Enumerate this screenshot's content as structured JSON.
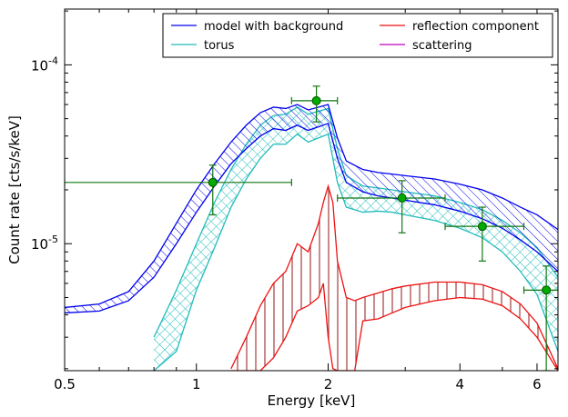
{
  "chart_data": {
    "type": "line",
    "title": "",
    "xlabel": "Energy [keV]",
    "ylabel": "Count rate [cts/s/keV]",
    "xscale": "log",
    "yscale": "log",
    "xlim": [
      0.5,
      6.7
    ],
    "ylim": [
      1.95e-06,
      0.000205
    ],
    "x_ticks": [
      {
        "value": 0.5,
        "label": "0.5"
      },
      {
        "value": 1,
        "label": "1"
      },
      {
        "value": 2,
        "label": "2"
      },
      {
        "value": 4,
        "label": "4"
      },
      {
        "value": 6,
        "label": "6"
      }
    ],
    "y_ticks": [
      {
        "value": 1e-05,
        "base": "10",
        "exp": "-5"
      },
      {
        "value": 0.0001,
        "base": "10",
        "exp": "-4"
      }
    ],
    "legend": {
      "placement": "top-right",
      "columns": 2,
      "entries": [
        {
          "label": "model with background",
          "color": "#0000ee"
        },
        {
          "label": "reflection component",
          "color": "#ee1111"
        },
        {
          "label": "torus",
          "color": "#22bbbb"
        },
        {
          "label": "scattering",
          "color": "#bb00bb"
        }
      ]
    },
    "colors": {
      "model": "#0000ee",
      "torus": "#22bbbb",
      "reflection": "#ee1111",
      "reflection_fill": "#a83a3a",
      "data": "#117711",
      "data_marker": "#00aa00"
    },
    "series": [
      {
        "name": "model with background",
        "band": true,
        "x": [
          0.5,
          0.6,
          0.7,
          0.8,
          0.9,
          1.0,
          1.1,
          1.2,
          1.3,
          1.4,
          1.5,
          1.6,
          1.7,
          1.8,
          1.9,
          2.0,
          2.1,
          2.2,
          2.4,
          2.6,
          2.8,
          3.0,
          3.5,
          4.0,
          4.5,
          5.0,
          5.5,
          6.0,
          6.7
        ],
        "upper": [
          4.4e-06,
          4.6e-06,
          5.4e-06,
          8e-06,
          1.3e-05,
          2e-05,
          2.8e-05,
          3.7e-05,
          4.6e-05,
          5.4e-05,
          5.8e-05,
          5.7e-05,
          6e-05,
          5.6e-05,
          5.8e-05,
          6e-05,
          3.9e-05,
          2.9e-05,
          2.6e-05,
          2.5e-05,
          2.45e-05,
          2.4e-05,
          2.3e-05,
          2.15e-05,
          2e-05,
          1.8e-05,
          1.6e-05,
          1.45e-05,
          1.2e-05
        ],
        "lower": [
          4.1e-06,
          4.2e-06,
          4.8e-06,
          6.5e-06,
          1e-05,
          1.5e-05,
          2.1e-05,
          2.8e-05,
          3.4e-05,
          4e-05,
          4.4e-05,
          4.3e-05,
          4.6e-05,
          4.3e-05,
          4.5e-05,
          4.7e-05,
          3e-05,
          2.2e-05,
          1.95e-05,
          1.85e-05,
          1.8e-05,
          1.75e-05,
          1.65e-05,
          1.52e-05,
          1.38e-05,
          1.22e-05,
          1.05e-05,
          9e-06,
          7e-06
        ]
      },
      {
        "name": "torus",
        "band": true,
        "x": [
          0.8,
          0.9,
          1.0,
          1.1,
          1.2,
          1.3,
          1.4,
          1.5,
          1.6,
          1.7,
          1.8,
          1.9,
          2.0,
          2.1,
          2.2,
          2.4,
          2.6,
          2.8,
          3.0,
          3.5,
          4.0,
          4.5,
          5.0,
          5.5,
          6.0,
          6.7
        ],
        "upper": [
          3e-06,
          5.5e-06,
          1e-05,
          1.7e-05,
          2.6e-05,
          3.6e-05,
          4.6e-05,
          5.2e-05,
          5.3e-05,
          5.8e-05,
          5.3e-05,
          5.5e-05,
          5.7e-05,
          3.4e-05,
          2.4e-05,
          2.1e-05,
          2.05e-05,
          2e-05,
          1.95e-05,
          1.85e-05,
          1.7e-05,
          1.55e-05,
          1.35e-05,
          1.15e-05,
          9.5e-06,
          6.5e-06
        ],
        "lower": [
          1.95e-06,
          2.5e-06,
          5.5e-06,
          9.5e-06,
          1.6e-05,
          2.3e-05,
          3e-05,
          3.6e-05,
          3.6e-05,
          4.1e-05,
          3.7e-05,
          3.9e-05,
          4.1e-05,
          2.2e-05,
          1.6e-05,
          1.5e-05,
          1.52e-05,
          1.5e-05,
          1.45e-05,
          1.35e-05,
          1.22e-05,
          1.08e-05,
          9e-06,
          7e-06,
          5.2e-06,
          2.5e-06
        ]
      },
      {
        "name": "reflection component",
        "band": true,
        "x": [
          1.2,
          1.3,
          1.4,
          1.5,
          1.6,
          1.7,
          1.8,
          1.9,
          1.95,
          2.0,
          2.05,
          2.1,
          2.2,
          2.3,
          2.4,
          2.6,
          2.8,
          3.0,
          3.5,
          4.0,
          4.5,
          5.0,
          5.5,
          6.0,
          6.7
        ],
        "upper": [
          2e-06,
          3e-06,
          4.5e-06,
          6e-06,
          7e-06,
          1e-05,
          9e-06,
          1.3e-05,
          1.7e-05,
          2.1e-05,
          1.7e-05,
          8e-06,
          5e-06,
          4.8e-06,
          5e-06,
          5.3e-06,
          5.6e-06,
          5.8e-06,
          6.1e-06,
          6.1e-06,
          5.9e-06,
          5.4e-06,
          4.6e-06,
          3.6e-06,
          2e-06
        ],
        "lower": [
          1.95e-06,
          1.95e-06,
          1.95e-06,
          2.3e-06,
          3e-06,
          4.2e-06,
          4.5e-06,
          5e-06,
          6e-06,
          3e-06,
          2e-06,
          1.95e-06,
          1.95e-06,
          1.95e-06,
          3.7e-06,
          3.8e-06,
          4.1e-06,
          4.4e-06,
          4.8e-06,
          5e-06,
          4.9e-06,
          4.5e-06,
          3.8e-06,
          3e-06,
          1.95e-06
        ]
      }
    ],
    "data_points": {
      "name": "data",
      "points": [
        {
          "x": 1.09,
          "y": 2.2e-05,
          "xerr": [
            0.5,
            1.65
          ],
          "yerr": [
            1.45e-05,
            2.75e-05
          ]
        },
        {
          "x": 1.88,
          "y": 6.3e-05,
          "xerr": [
            1.65,
            2.1
          ],
          "yerr": [
            4.8e-05,
            7.6e-05
          ]
        },
        {
          "x": 2.95,
          "y": 1.8e-05,
          "xerr": [
            2.1,
            3.7
          ],
          "yerr": [
            1.15e-05,
            2.25e-05
          ]
        },
        {
          "x": 4.5,
          "y": 1.25e-05,
          "xerr": [
            3.7,
            5.6
          ],
          "yerr": [
            8e-06,
            1.6e-05
          ]
        },
        {
          "x": 6.3,
          "y": 5.5e-06,
          "xerr": [
            5.6,
            6.7
          ],
          "yerr": [
            1.95e-06,
            7.5e-06
          ]
        }
      ]
    }
  }
}
